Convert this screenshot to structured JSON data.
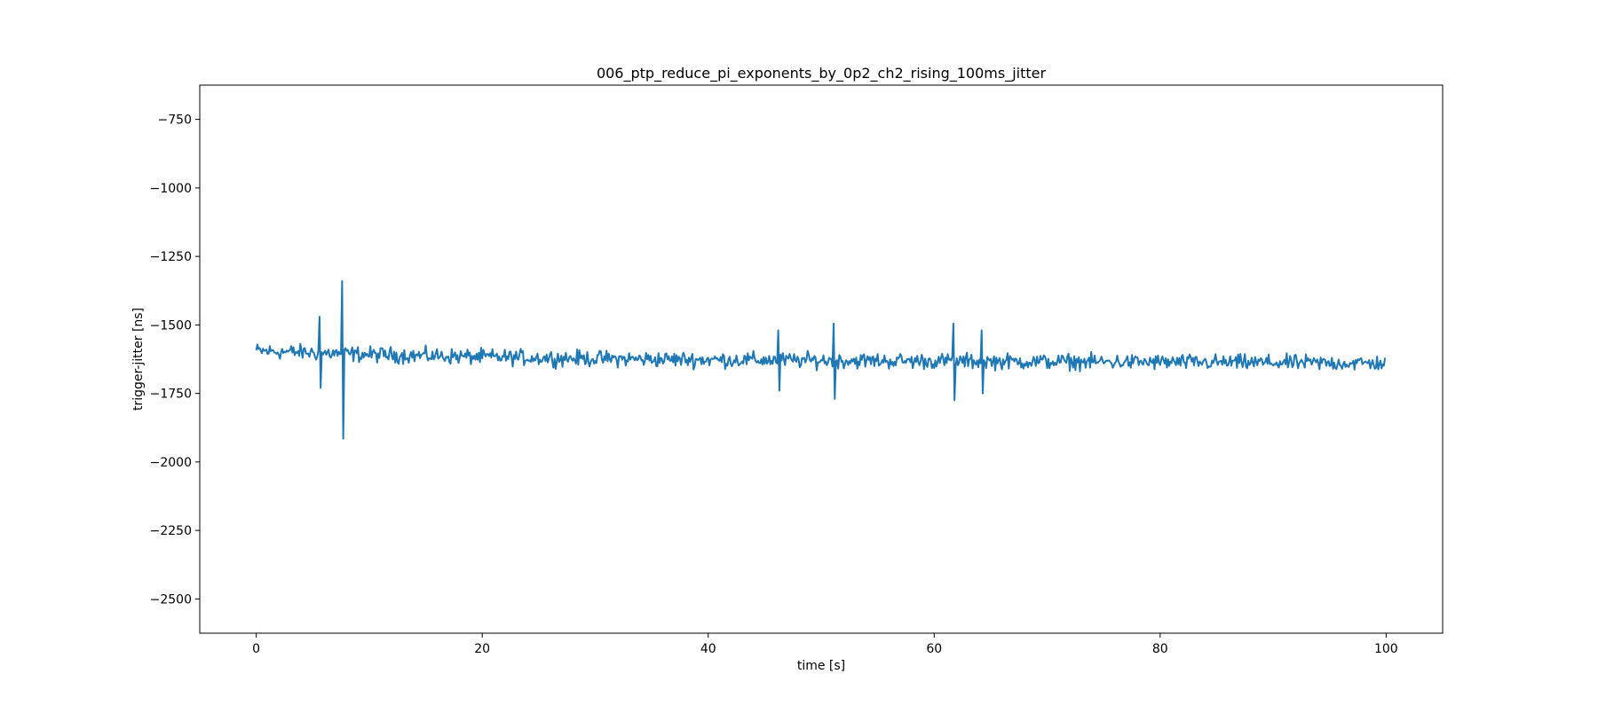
{
  "chart_data": {
    "type": "line",
    "title": "006_ptp_reduce_pi_exponents_by_0p2_ch2_rising_100ms_jitter",
    "xlabel": "time [s]",
    "ylabel": "trigger-jitter [ns]",
    "xlim": [
      -5,
      105
    ],
    "ylim": [
      -2625,
      -625
    ],
    "xticks": [
      0,
      20,
      40,
      60,
      80,
      100
    ],
    "yticks": [
      -750,
      -1000,
      -1250,
      -1500,
      -1750,
      -2000,
      -2250,
      -2500
    ],
    "xtick_labels": [
      "0",
      "20",
      "40",
      "60",
      "80",
      "100"
    ],
    "ytick_labels": [
      "−750",
      "−1000",
      "−1250",
      "−1500",
      "−1750",
      "−2000",
      "−2250",
      "−2500"
    ],
    "grid": false,
    "legend": "none",
    "series": [
      {
        "color": "#1f77b4",
        "sample_interval_s": 0.1,
        "x_range": [
          0,
          99.9
        ],
        "trend": [
          {
            "x": 0,
            "y": -1595
          },
          {
            "x": 10,
            "y": -1608
          },
          {
            "x": 20,
            "y": -1617
          },
          {
            "x": 30,
            "y": -1623
          },
          {
            "x": 40,
            "y": -1627
          },
          {
            "x": 60,
            "y": -1632
          },
          {
            "x": 80,
            "y": -1636
          },
          {
            "x": 99.9,
            "y": -1640
          }
        ],
        "noise_amplitude": 28,
        "spikes": [
          {
            "x": 5.6,
            "up": -1470,
            "down": -1730
          },
          {
            "x": 7.6,
            "up": -1340,
            "down": -1915
          },
          {
            "x": 46.2,
            "up": -1520,
            "down": -1740
          },
          {
            "x": 51.1,
            "up": -1495,
            "down": -1770
          },
          {
            "x": 61.7,
            "up": -1495,
            "down": -1775
          },
          {
            "x": 64.2,
            "up": -1520,
            "down": -1750
          }
        ]
      }
    ]
  }
}
